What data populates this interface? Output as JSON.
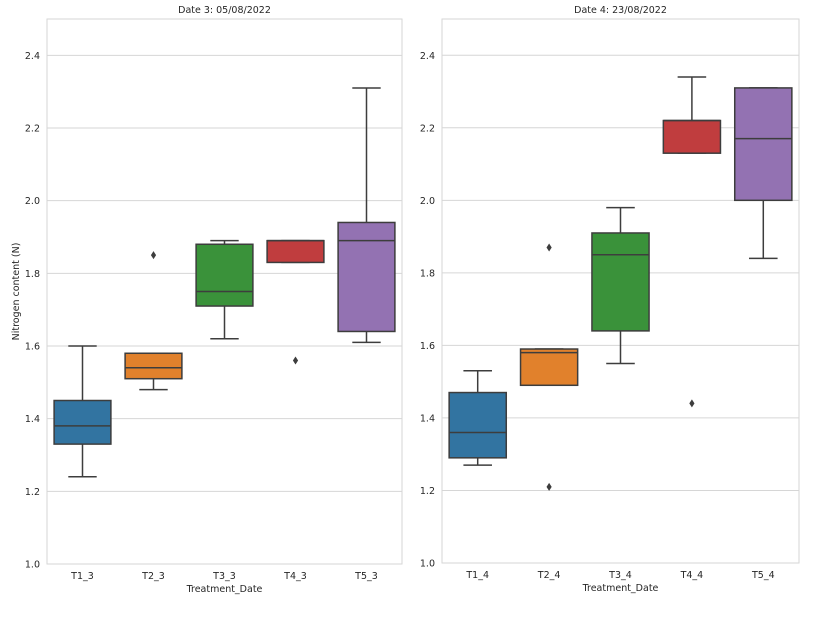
{
  "chart_data": [
    {
      "type": "box",
      "title": "Date 3: 05/08/2022",
      "xlabel": "Treatment_Date",
      "ylabel": "Nitrogen content (N)",
      "ylim": [
        1.0,
        2.5
      ],
      "yticks": [
        "1.0",
        "1.2",
        "1.4",
        "1.6",
        "1.8",
        "2.0",
        "2.2",
        "2.4"
      ],
      "grid": "horizontal",
      "categories": [
        "T1_3",
        "T2_3",
        "T3_3",
        "T4_3",
        "T5_3"
      ],
      "colors": [
        "#3274a1",
        "#e1812c",
        "#3a923a",
        "#c03d3e",
        "#9372b2"
      ],
      "boxes": [
        {
          "whislo": 1.24,
          "q1": 1.33,
          "med": 1.38,
          "q3": 1.45,
          "whishi": 1.6,
          "fliers": []
        },
        {
          "whislo": 1.48,
          "q1": 1.51,
          "med": 1.54,
          "q3": 1.58,
          "whishi": 1.58,
          "fliers": [
            1.85
          ]
        },
        {
          "whislo": 1.62,
          "q1": 1.71,
          "med": 1.75,
          "q3": 1.88,
          "whishi": 1.89,
          "fliers": []
        },
        {
          "whislo": 1.83,
          "q1": 1.83,
          "med": 1.89,
          "q3": 1.89,
          "whishi": 1.89,
          "fliers": [
            1.56
          ]
        },
        {
          "whislo": 1.61,
          "q1": 1.64,
          "med": 1.89,
          "q3": 1.94,
          "whishi": 2.31,
          "fliers": []
        }
      ]
    },
    {
      "type": "box",
      "title": "Date 4: 23/08/2022",
      "xlabel": "Treatment_Date",
      "ylabel": "",
      "ylim": [
        1.0,
        2.5
      ],
      "yticks": [
        "1.0",
        "1.2",
        "1.4",
        "1.6",
        "1.8",
        "2.0",
        "2.2",
        "2.4"
      ],
      "grid": "horizontal",
      "categories": [
        "T1_4",
        "T2_4",
        "T3_4",
        "T4_4",
        "T5_4"
      ],
      "colors": [
        "#3274a1",
        "#e1812c",
        "#3a923a",
        "#c03d3e",
        "#9372b2"
      ],
      "boxes": [
        {
          "whislo": 1.27,
          "q1": 1.29,
          "med": 1.36,
          "q3": 1.47,
          "whishi": 1.53,
          "fliers": []
        },
        {
          "whislo": 1.49,
          "q1": 1.49,
          "med": 1.58,
          "q3": 1.59,
          "whishi": 1.59,
          "fliers": [
            1.87,
            1.21
          ]
        },
        {
          "whislo": 1.55,
          "q1": 1.64,
          "med": 1.85,
          "q3": 1.91,
          "whishi": 1.98,
          "fliers": []
        },
        {
          "whislo": 2.13,
          "q1": 2.13,
          "med": 2.22,
          "q3": 2.22,
          "whishi": 2.34,
          "fliers": [
            1.44
          ]
        },
        {
          "whislo": 1.84,
          "q1": 2.0,
          "med": 2.17,
          "q3": 2.31,
          "whishi": 2.31,
          "fliers": []
        }
      ]
    }
  ]
}
